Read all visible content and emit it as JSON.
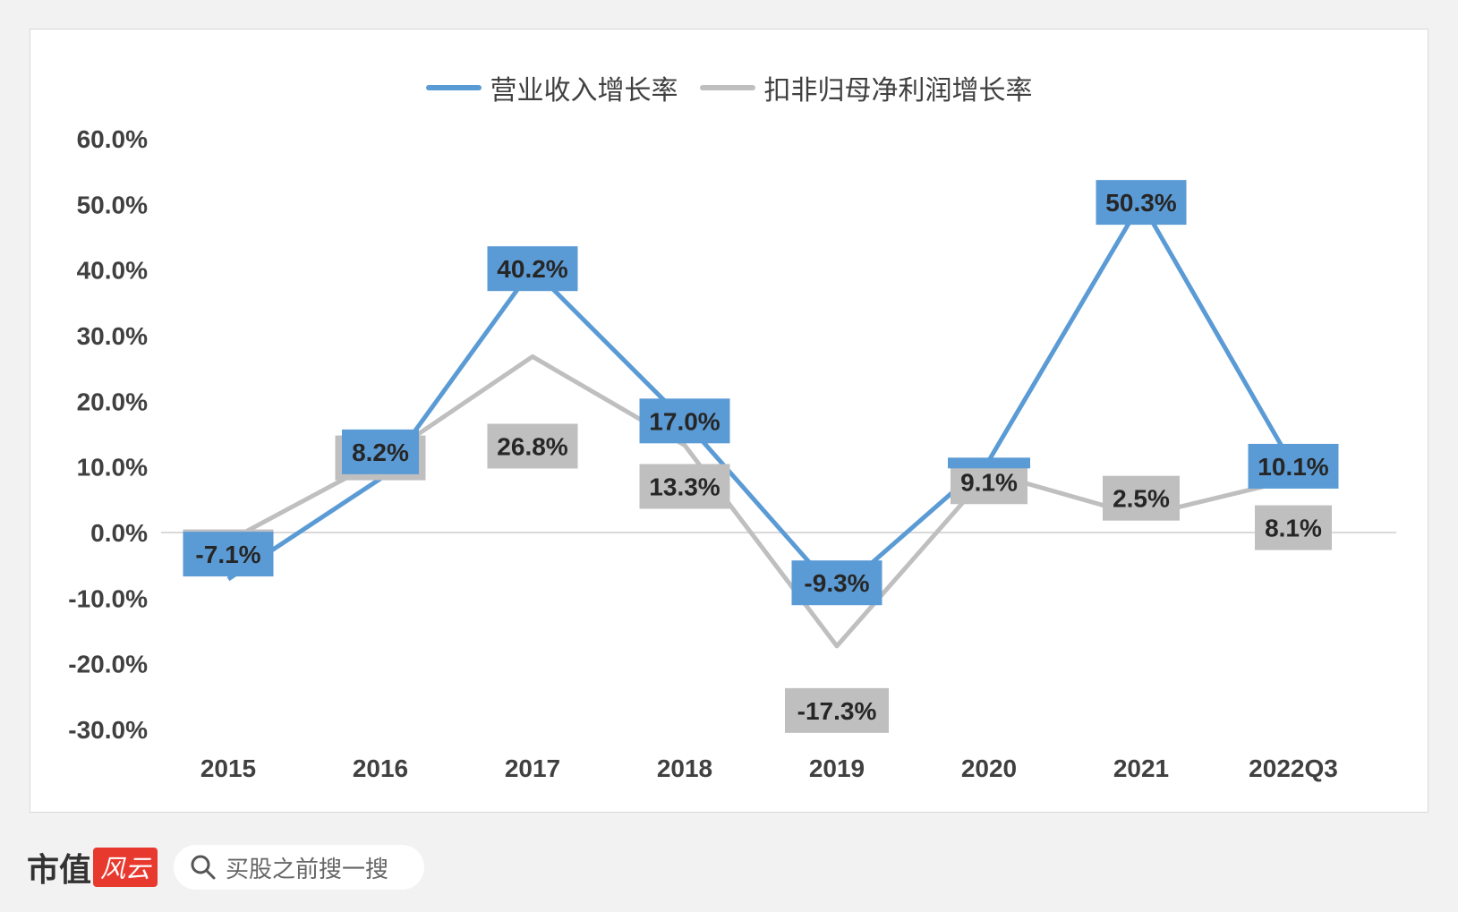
{
  "chart_data": {
    "type": "line",
    "categories": [
      "2015",
      "2016",
      "2017",
      "2018",
      "2019",
      "2020",
      "2021",
      "2022Q3"
    ],
    "series": [
      {
        "name": "营业收入增长率",
        "color": "#5b9bd5",
        "values": [
          -7.1,
          8.2,
          40.2,
          17.0,
          -9.3,
          11.0,
          50.3,
          10.1
        ],
        "labels": [
          "-7.1%",
          "8.2%",
          "40.2%",
          "17.0%",
          "-9.3%",
          "",
          "50.3%",
          "10.1%"
        ]
      },
      {
        "name": "扣非归母净利润增长率",
        "color": "#bfbfbf",
        "values": [
          -1.3,
          11.1,
          26.8,
          13.3,
          -17.3,
          9.1,
          2.5,
          8.1
        ],
        "labels": [
          "-1.3%",
          "11.1%",
          "26.8%",
          "13.3%",
          "-17.3%",
          "9.1%",
          "2.5%",
          "8.1%"
        ]
      }
    ],
    "yticks": [
      "60.0%",
      "50.0%",
      "40.0%",
      "30.0%",
      "20.0%",
      "10.0%",
      "0.0%",
      "-10.0%",
      "-20.0%",
      "-30.0%"
    ],
    "ylim": [
      -30,
      60
    ],
    "legend_position": "top",
    "grid": false
  },
  "footer": {
    "brand_text": "市值",
    "brand_badge": "风云",
    "search_placeholder": "买股之前搜一搜",
    "search_icon": "search-icon"
  }
}
